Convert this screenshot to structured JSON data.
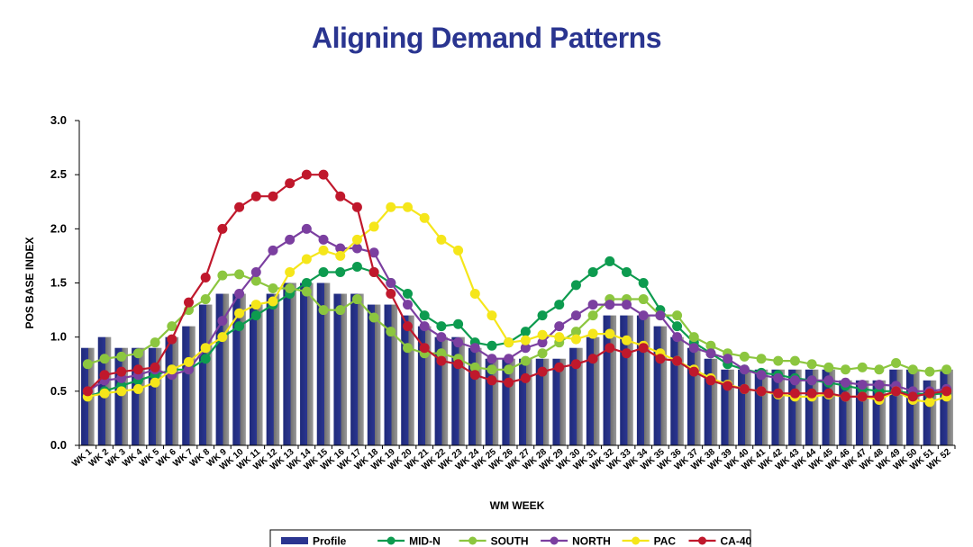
{
  "chart_data": {
    "type": "bar",
    "title": "Aligning Demand Patterns",
    "xlabel": "WM WEEK",
    "ylabel": "POS BASE INDEX",
    "ylim": [
      0,
      3
    ],
    "yticks": [
      "0.0",
      "0.5",
      "1.0",
      "1.5",
      "2.0",
      "2.5",
      "3.0"
    ],
    "grid": false,
    "legend_position": "bottom",
    "categories": [
      "WK 1",
      "WK 2",
      "WK 3",
      "WK 4",
      "WK 5",
      "WK 6",
      "WK 7",
      "WK 8",
      "WK 9",
      "WK 10",
      "WK 11",
      "WK 12",
      "WK 13",
      "WK 14",
      "WK 15",
      "WK 16",
      "WK 17",
      "WK 18",
      "WK 19",
      "WK 20",
      "WK 21",
      "WK 22",
      "WK 23",
      "WK 24",
      "WK 25",
      "WK 26",
      "WK 27",
      "WK 28",
      "WK 29",
      "WK 30",
      "WK 31",
      "WK 32",
      "WK 33",
      "WK 34",
      "WK 35",
      "WK 36",
      "WK 37",
      "WK 38",
      "WK 39",
      "WK 40",
      "WK 41",
      "WK 42",
      "WK 43",
      "WK 44",
      "WK 45",
      "WK 46",
      "WK 47",
      "WK 48",
      "WK 49",
      "WK 50",
      "WK 51",
      "WK 52"
    ],
    "series": [
      {
        "name": "Profile",
        "kind": "bar",
        "color": "#2a3590",
        "values": [
          0.9,
          1.0,
          0.9,
          0.9,
          0.9,
          1.0,
          1.1,
          1.3,
          1.4,
          1.4,
          1.3,
          1.4,
          1.5,
          1.5,
          1.5,
          1.4,
          1.4,
          1.3,
          1.3,
          1.2,
          1.1,
          1.0,
          1.0,
          0.9,
          0.8,
          0.8,
          0.8,
          0.8,
          0.8,
          0.9,
          1.0,
          1.2,
          1.2,
          1.2,
          1.1,
          1.0,
          0.9,
          0.8,
          0.7,
          0.7,
          0.7,
          0.7,
          0.7,
          0.7,
          0.7,
          0.6,
          0.6,
          0.6,
          0.7,
          0.7,
          0.6,
          0.7
        ]
      },
      {
        "name": "MID-N",
        "kind": "line",
        "color": "#0d9b4f",
        "values": [
          0.45,
          0.5,
          0.55,
          0.6,
          0.65,
          0.7,
          0.7,
          0.8,
          1.0,
          1.1,
          1.2,
          1.3,
          1.4,
          1.5,
          1.6,
          1.6,
          1.65,
          1.6,
          1.5,
          1.4,
          1.2,
          1.1,
          1.12,
          0.95,
          0.92,
          0.95,
          1.05,
          1.2,
          1.3,
          1.48,
          1.6,
          1.7,
          1.6,
          1.5,
          1.25,
          1.1,
          0.95,
          0.85,
          0.75,
          0.7,
          0.67,
          0.65,
          0.62,
          0.6,
          0.58,
          0.55,
          0.52,
          0.5,
          0.5,
          0.48,
          0.47,
          0.48
        ]
      },
      {
        "name": "SOUTH",
        "kind": "line",
        "color": "#8cc63f",
        "values": [
          0.75,
          0.8,
          0.82,
          0.85,
          0.95,
          1.1,
          1.25,
          1.35,
          1.57,
          1.58,
          1.52,
          1.45,
          1.45,
          1.42,
          1.25,
          1.25,
          1.35,
          1.18,
          1.05,
          0.9,
          0.85,
          0.85,
          0.8,
          0.72,
          0.7,
          0.7,
          0.78,
          0.85,
          0.95,
          1.05,
          1.2,
          1.35,
          1.35,
          1.35,
          1.2,
          1.2,
          1.0,
          0.92,
          0.85,
          0.82,
          0.8,
          0.78,
          0.78,
          0.75,
          0.72,
          0.7,
          0.72,
          0.7,
          0.76,
          0.7,
          0.68,
          0.7
        ]
      },
      {
        "name": "NORTH",
        "kind": "line",
        "color": "#7b3fa0",
        "values": [
          0.5,
          0.6,
          0.62,
          0.65,
          0.7,
          0.65,
          0.7,
          0.9,
          1.15,
          1.4,
          1.6,
          1.8,
          1.9,
          2.0,
          1.9,
          1.82,
          1.82,
          1.78,
          1.5,
          1.3,
          1.1,
          1.0,
          0.95,
          0.9,
          0.8,
          0.8,
          0.9,
          0.95,
          1.1,
          1.2,
          1.3,
          1.3,
          1.3,
          1.2,
          1.2,
          1.0,
          0.9,
          0.85,
          0.8,
          0.7,
          0.65,
          0.62,
          0.6,
          0.6,
          0.6,
          0.58,
          0.56,
          0.56,
          0.55,
          0.5,
          0.5,
          0.52
        ]
      },
      {
        "name": "PAC",
        "kind": "line",
        "color": "#f5e61a",
        "values": [
          0.45,
          0.48,
          0.5,
          0.52,
          0.58,
          0.7,
          0.77,
          0.9,
          1.0,
          1.22,
          1.3,
          1.33,
          1.6,
          1.72,
          1.8,
          1.75,
          1.9,
          2.02,
          2.2,
          2.2,
          2.1,
          1.9,
          1.8,
          1.4,
          1.2,
          0.95,
          0.97,
          1.02,
          1.0,
          0.98,
          1.03,
          1.03,
          0.97,
          0.92,
          0.85,
          0.78,
          0.7,
          0.62,
          0.56,
          0.52,
          0.5,
          0.47,
          0.45,
          0.45,
          0.47,
          0.45,
          0.45,
          0.42,
          0.5,
          0.42,
          0.4,
          0.45
        ]
      },
      {
        "name": "CA-40",
        "kind": "line",
        "color": "#c0182c",
        "values": [
          0.5,
          0.65,
          0.68,
          0.7,
          0.72,
          0.98,
          1.32,
          1.55,
          2.0,
          2.2,
          2.3,
          2.3,
          2.42,
          2.5,
          2.5,
          2.3,
          2.2,
          1.6,
          1.4,
          1.1,
          0.9,
          0.78,
          0.75,
          0.65,
          0.6,
          0.58,
          0.62,
          0.68,
          0.72,
          0.75,
          0.8,
          0.9,
          0.85,
          0.9,
          0.8,
          0.78,
          0.68,
          0.6,
          0.55,
          0.52,
          0.5,
          0.48,
          0.48,
          0.48,
          0.48,
          0.45,
          0.45,
          0.45,
          0.5,
          0.45,
          0.48,
          0.5
        ]
      }
    ]
  }
}
